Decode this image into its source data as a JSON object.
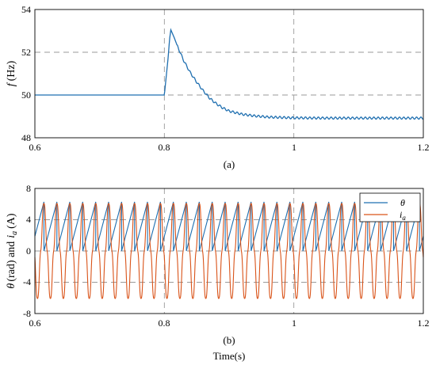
{
  "chart_data": [
    {
      "type": "line",
      "caption": "(a)",
      "ylabel": {
        "symbol": "f",
        "unit": "(Hz)"
      },
      "xlabel": "",
      "xlim": [
        0.6,
        1.2
      ],
      "ylim": [
        48,
        54
      ],
      "xticks": [
        "0.6",
        "0.8",
        "1",
        "1.2"
      ],
      "yticks": [
        "48",
        "50",
        "52",
        "54"
      ],
      "grid": "dashed",
      "series": [
        {
          "color": "#1f6fb0",
          "x": [
            0.6,
            0.798,
            0.8,
            0.802,
            0.804,
            0.806,
            0.808,
            0.81,
            0.815,
            0.82,
            0.83,
            0.84,
            0.85,
            0.86,
            0.87,
            0.88,
            0.89,
            0.9,
            0.92,
            0.94,
            0.96,
            0.98,
            1.0,
            1.05,
            1.1,
            1.15,
            1.2
          ],
          "values": [
            50.0,
            50.0,
            50.0,
            50.6,
            51.2,
            51.8,
            52.6,
            53.05,
            52.7,
            52.3,
            51.6,
            51.05,
            50.6,
            50.2,
            49.85,
            49.6,
            49.4,
            49.25,
            49.1,
            49.02,
            48.97,
            48.95,
            48.93,
            48.92,
            48.92,
            48.92,
            48.92
          ]
        }
      ]
    },
    {
      "type": "line",
      "caption": "(b)",
      "ylabel": {
        "symbol": "θ",
        "mid": "(rad) and",
        "symbol2": "i",
        "sub": "a",
        "unit": "(A)"
      },
      "xlabel": "Time(s)",
      "xlim": [
        0.6,
        1.2
      ],
      "ylim": [
        -8,
        8
      ],
      "xticks": [
        "0.6",
        "0.8",
        "1",
        "1.2"
      ],
      "yticks": [
        "-8",
        "-4",
        "0",
        "4",
        "8"
      ],
      "grid": "dashed",
      "legend": {
        "placement": "top-right",
        "entries": [
          "θ",
          "i_a"
        ]
      },
      "series": [
        {
          "name": "θ",
          "color": "#1f6fb0",
          "period": 0.02,
          "range": [
            0,
            6.2832
          ]
        },
        {
          "name": "i_a",
          "color": "#d95319",
          "period": 0.02,
          "amplitude": 6.2
        }
      ]
    }
  ]
}
